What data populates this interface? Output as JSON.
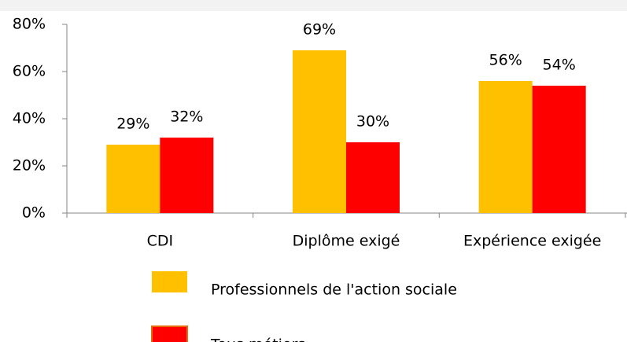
{
  "chart_data": {
    "type": "bar",
    "categories": [
      "CDI",
      "Diplôme exigé",
      "Expérience exigée"
    ],
    "series": [
      {
        "name": "Professionnels de l'action sociale",
        "color": "#ffc000",
        "values": [
          29,
          69,
          56
        ],
        "value_labels": [
          "29%",
          "69%",
          "56%"
        ]
      },
      {
        "name": "Tous métiers",
        "color": "#ff0000",
        "values": [
          32,
          30,
          54
        ],
        "value_labels": [
          "32%",
          "30%",
          "54%"
        ]
      }
    ],
    "ylim": [
      0,
      80
    ],
    "yticks": [
      {
        "value": 0,
        "label": "0%"
      },
      {
        "value": 20,
        "label": "20%"
      },
      {
        "value": 40,
        "label": "40%"
      },
      {
        "value": 60,
        "label": "60%"
      },
      {
        "value": 80,
        "label": "80%"
      }
    ],
    "grid": false,
    "legend": "bottom"
  }
}
